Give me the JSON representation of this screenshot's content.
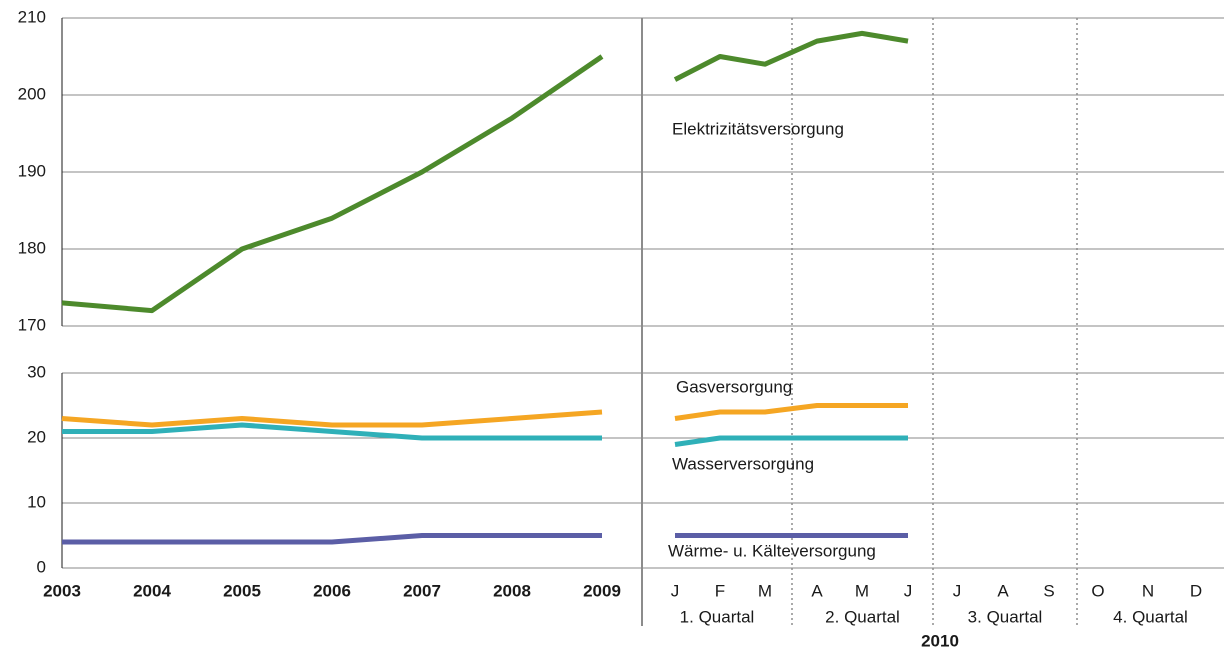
{
  "chart_data": [
    {
      "type": "line",
      "ylim": [
        170,
        210
      ],
      "yticks": [
        170,
        180,
        190,
        200,
        210
      ],
      "grid": true,
      "series": [
        {
          "name": "Elektrizitätsversorgung",
          "color": "#4d8a2c",
          "values": [
            173,
            172,
            180,
            184,
            190,
            197,
            205,
            202,
            205,
            204,
            207,
            208,
            207,
            null,
            null,
            null,
            null,
            null,
            null
          ]
        }
      ]
    },
    {
      "type": "line",
      "ylim": [
        0,
        30
      ],
      "yticks": [
        0,
        10,
        20,
        30
      ],
      "grid": true,
      "categories": [
        "2003",
        "2004",
        "2005",
        "2006",
        "2007",
        "2008",
        "2009",
        "J",
        "F",
        "M",
        "A",
        "M",
        "J",
        "J",
        "A",
        "S",
        "O",
        "N",
        "D"
      ],
      "category_groups": [
        "1. Quartal",
        "2. Quartal",
        "3. Quartal",
        "4. Quartal"
      ],
      "group_year": "2010",
      "series": [
        {
          "name": "Gasversorgung",
          "color": "#f5a623",
          "values": [
            23,
            22,
            23,
            22,
            22,
            23,
            24,
            23,
            24,
            24,
            25,
            25,
            25,
            null,
            null,
            null,
            null,
            null,
            null
          ]
        },
        {
          "name": "Wasserversorgung",
          "color": "#2fb0b8",
          "values": [
            21,
            21,
            22,
            21,
            20,
            20,
            20,
            19,
            20,
            20,
            20,
            20,
            20,
            null,
            null,
            null,
            null,
            null,
            null
          ]
        },
        {
          "name": "Wärme- u. Kälteversorgung",
          "color": "#5b5ea6",
          "values": [
            4,
            4,
            4,
            4,
            5,
            5,
            5,
            5,
            5,
            5,
            5,
            5,
            5,
            null,
            null,
            null,
            null,
            null,
            null
          ]
        }
      ]
    }
  ]
}
